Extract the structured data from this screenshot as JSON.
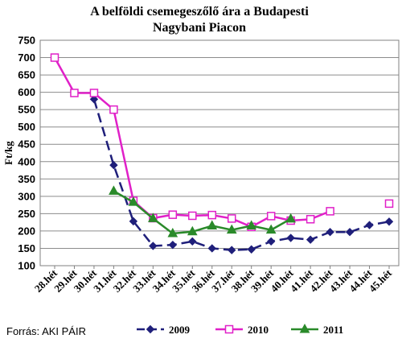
{
  "chart_data": {
    "type": "line",
    "title_lines": [
      "A belföldi csemegeszőlő ára a Budapesti",
      "Nagybani Piacon"
    ],
    "ylabel": "Ft/kg",
    "xlabel": "",
    "ylim": [
      100,
      750
    ],
    "yticks": [
      100,
      150,
      200,
      250,
      300,
      350,
      400,
      450,
      500,
      550,
      600,
      650,
      700,
      750
    ],
    "grid": "horizontal",
    "legend_position": "bottom",
    "categories": [
      "28.hét",
      "29.hét",
      "30.hét",
      "31.hét",
      "32.hét",
      "33.hét",
      "34.hét",
      "35.hét",
      "36.hét",
      "37.hét",
      "38.hét",
      "39.hét",
      "40.hét",
      "41.hét",
      "42.hét",
      "43.hét",
      "44.hét",
      "45.hét"
    ],
    "series": [
      {
        "name": "2009",
        "color": "#1f1f7a",
        "marker": "diamond",
        "dash": "dashed",
        "values": [
          null,
          null,
          580,
          390,
          228,
          157,
          160,
          170,
          150,
          145,
          147,
          170,
          180,
          175,
          197,
          197,
          217,
          227
        ]
      },
      {
        "name": "2010",
        "color": "#e020c8",
        "marker": "square-open",
        "dash": "solid",
        "values": [
          700,
          598,
          598,
          550,
          287,
          237,
          247,
          244,
          246,
          236,
          212,
          243,
          230,
          234,
          257,
          null,
          null,
          279
        ]
      },
      {
        "name": "2011",
        "color": "#2a8a2a",
        "marker": "triangle",
        "dash": "solid",
        "values": [
          null,
          null,
          null,
          315,
          283,
          236,
          193,
          198,
          215,
          203,
          215,
          203,
          235,
          null,
          null,
          null,
          null,
          null
        ]
      }
    ]
  },
  "source": "Forrás: AKI PÁIR"
}
